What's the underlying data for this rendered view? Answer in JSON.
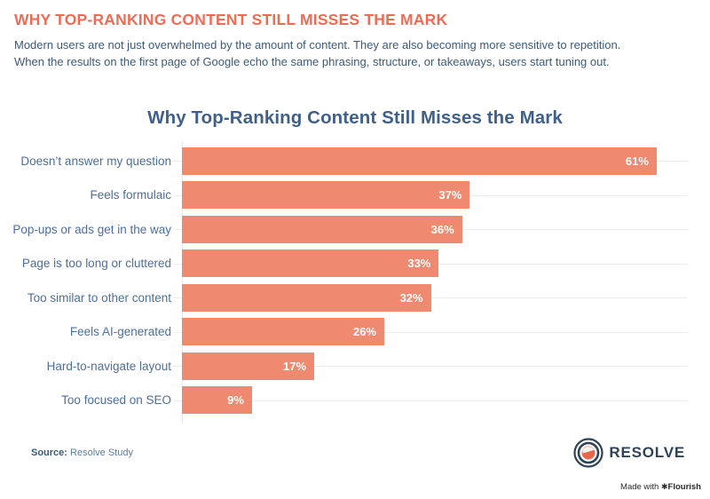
{
  "header": {
    "title": "WHY TOP-RANKING CONTENT STILL MISSES THE MARK",
    "description_lines": [
      "Modern users are not just overwhelmed by the amount of content. They are also becoming more sensitive to repetition.",
      "When the results on the first page of Google echo the same phrasing, structure, or takeaways, users start tuning out."
    ]
  },
  "chart_data": {
    "type": "bar",
    "orientation": "horizontal",
    "title": "Why Top-Ranking Content Still Misses the Mark",
    "categories": [
      "Doesn’t answer my question",
      "Feels formulaic",
      "Pop-ups or ads get in the way",
      "Page is too long or cluttered",
      "Too similar to other content",
      "Feels AI-generated",
      "Hard-to-navigate layout",
      "Too focused on SEO"
    ],
    "values": [
      61,
      37,
      36,
      33,
      32,
      26,
      17,
      9
    ],
    "value_suffix": "%",
    "xlabel": "",
    "ylabel": "",
    "xlim": [
      0,
      65
    ],
    "grid": "horizontal-row-lines",
    "legend": "none",
    "bar_color": "#ef8a71",
    "value_label_color": "#ffffff",
    "category_label_color": "#4e6e9b"
  },
  "footer": {
    "source_label": "Source:",
    "source_value": "Resolve Study",
    "logo_text": "RESOLVE",
    "made_with": "Made with ",
    "flourish_mark": "✱",
    "flourish_name": "Flourish"
  },
  "colors": {
    "header_title": "#ee6c55",
    "chart_title": "#40608a",
    "body_text": "#3d5a78",
    "bar": "#ef8a71",
    "logo_navy": "#2e4358",
    "logo_coral": "#e8674a"
  }
}
